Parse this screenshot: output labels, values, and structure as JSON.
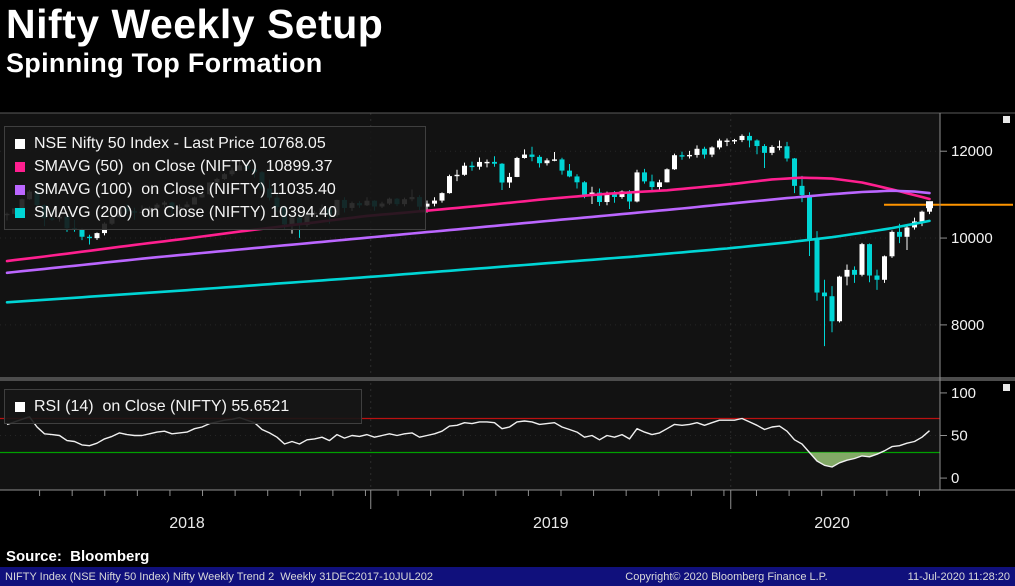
{
  "header": {
    "title": "Nifty Weekly Setup",
    "subtitle": "Spinning Top Formation"
  },
  "main_panel": {
    "legend": [
      {
        "label": "NSE Nifty 50 Index - Last Price 10768.05",
        "color": "#ffffff"
      },
      {
        "label": "SMAVG (50)  on Close (NIFTY)  10899.37",
        "color": "#ff1f8f"
      },
      {
        "label": "SMAVG (100)  on Close (NIFTY) 11035.40",
        "color": "#bb66ff"
      },
      {
        "label": "SMAVG (200)  on Close (NIFTY) 10394.40",
        "color": "#00d5d5"
      }
    ]
  },
  "rsi_panel": {
    "legend": "RSI (14)  on Close (NIFTY) 55.6521",
    "swatch_color": "#ffffff"
  },
  "footer": {
    "source": "Source:  Bloomberg",
    "status_left": "NIFTY Index (NSE Nifty 50 Index) Nifty Weekly Trend 2  Weekly 31DEC2017-10JUL202",
    "status_center": "Copyright© 2020 Bloomberg Finance L.P.",
    "status_right": "11-Jul-2020 11:28:20"
  },
  "chart_data": [
    {
      "type": "candlestick",
      "name": "NSE Nifty 50 Index - Last Price",
      "last_price": 10768.05,
      "x_unit": "week",
      "x_range_label": "31DEC2017-10JUL2020",
      "ylim": [
        6800,
        12880
      ],
      "y_ticks": [
        12000,
        10000,
        8000
      ],
      "up_color": "#ffffff",
      "down_color": "#00d5d5",
      "last_price_color": "#ff9500",
      "years": [
        {
          "label": "2018",
          "from": 0,
          "to": 48
        },
        {
          "label": "2019",
          "from": 49,
          "to": 96
        },
        {
          "label": "2020",
          "from": 97,
          "to": 123
        }
      ],
      "candles_ohlc": [
        [
          10531,
          10585,
          10404,
          10558
        ],
        [
          10558,
          10690,
          10548,
          10681
        ],
        [
          10681,
          10907,
          10675,
          10895
        ],
        [
          10895,
          11110,
          10883,
          11070
        ],
        [
          11070,
          11093,
          10736,
          10760
        ],
        [
          10760,
          10777,
          10276,
          10455
        ],
        [
          10455,
          10639,
          10400,
          10452
        ],
        [
          10452,
          10590,
          10378,
          10491
        ],
        [
          10491,
          10525,
          10141,
          10227
        ],
        [
          10227,
          10421,
          10146,
          10195
        ],
        [
          10195,
          10227,
          9952,
          10030
        ],
        [
          10030,
          10075,
          9852,
          9998
        ],
        [
          9998,
          10129,
          9958,
          10114
        ],
        [
          10114,
          10363,
          10062,
          10331
        ],
        [
          10331,
          10526,
          10302,
          10481
        ],
        [
          10481,
          10719,
          10470,
          10692
        ],
        [
          10692,
          10785,
          10557,
          10618
        ],
        [
          10618,
          10699,
          10418,
          10596
        ],
        [
          10596,
          10753,
          10527,
          10606
        ],
        [
          10606,
          10727,
          10506,
          10696
        ],
        [
          10696,
          10803,
          10644,
          10768
        ],
        [
          10768,
          10856,
          10701,
          10818
        ],
        [
          10818,
          10837,
          10550,
          10690
        ],
        [
          10690,
          10776,
          10614,
          10714
        ],
        [
          10714,
          10838,
          10678,
          10773
        ],
        [
          10773,
          10957,
          10769,
          10936
        ],
        [
          10936,
          11078,
          10926,
          11010
        ],
        [
          11010,
          11283,
          10999,
          11278
        ],
        [
          11278,
          11390,
          11234,
          11360
        ],
        [
          11360,
          11495,
          11340,
          11470
        ],
        [
          11470,
          11620,
          11426,
          11557
        ],
        [
          11557,
          11760,
          11553,
          11676
        ],
        [
          11676,
          11753,
          11567,
          11589
        ],
        [
          11589,
          11751,
          11393,
          11515
        ],
        [
          11515,
          11542,
          11087,
          11143
        ],
        [
          11143,
          11346,
          10866,
          10930
        ],
        [
          10930,
          11035,
          10603,
          10714
        ],
        [
          10714,
          10755,
          10199,
          10316
        ],
        [
          10316,
          10540,
          10102,
          10472
        ],
        [
          10472,
          10502,
          10004,
          10303
        ],
        [
          10303,
          10608,
          10261,
          10553
        ],
        [
          10553,
          10628,
          10477,
          10585
        ],
        [
          10585,
          10775,
          10564,
          10682
        ],
        [
          10682,
          10695,
          10333,
          10527
        ],
        [
          10527,
          10883,
          10488,
          10877
        ],
        [
          10877,
          10941,
          10588,
          10694
        ],
        [
          10694,
          10839,
          10625,
          10805
        ],
        [
          10805,
          10850,
          10694,
          10754
        ],
        [
          10754,
          10940,
          10738,
          10860
        ],
        [
          10860,
          10870,
          10628,
          10727
        ],
        [
          10727,
          10837,
          10692,
          10794
        ],
        [
          10794,
          10931,
          10761,
          10906
        ],
        [
          10906,
          10923,
          10735,
          10781
        ],
        [
          10781,
          10932,
          10730,
          10894
        ],
        [
          10894,
          11118,
          10848,
          10944
        ],
        [
          10944,
          10989,
          10620,
          10724
        ],
        [
          10724,
          10865,
          10585,
          10792
        ],
        [
          10792,
          10939,
          10729,
          10863
        ],
        [
          10863,
          11053,
          10817,
          11035
        ],
        [
          11035,
          11462,
          11022,
          11427
        ],
        [
          11427,
          11572,
          11311,
          11457
        ],
        [
          11457,
          11738,
          11434,
          11666
        ],
        [
          11666,
          11761,
          11549,
          11643
        ],
        [
          11643,
          11856,
          11576,
          11753
        ],
        [
          11753,
          11809,
          11627,
          11754
        ],
        [
          11754,
          11883,
          11641,
          11712
        ],
        [
          11712,
          11726,
          11108,
          11279
        ],
        [
          11279,
          11500,
          11157,
          11407
        ],
        [
          11407,
          11870,
          11402,
          11844
        ],
        [
          11844,
          12041,
          11830,
          11923
        ],
        [
          11923,
          12103,
          11769,
          11870
        ],
        [
          11870,
          11911,
          11625,
          11724
        ],
        [
          11724,
          11834,
          11670,
          11789
        ],
        [
          11789,
          11982,
          11770,
          11811
        ],
        [
          11811,
          11850,
          11461,
          11553
        ],
        [
          11553,
          11706,
          11399,
          11419
        ],
        [
          11419,
          11468,
          11141,
          11284
        ],
        [
          11284,
          11311,
          10918,
          10997
        ],
        [
          10997,
          11181,
          10783,
          11048
        ],
        [
          11048,
          11141,
          10741,
          10830
        ],
        [
          10830,
          11070,
          10756,
          11023
        ],
        [
          11023,
          11084,
          10814,
          10946
        ],
        [
          10946,
          11098,
          10905,
          11076
        ],
        [
          11076,
          11103,
          10670,
          10842
        ],
        [
          10842,
          11573,
          10823,
          11512
        ],
        [
          11512,
          11593,
          11254,
          11305
        ],
        [
          11305,
          11460,
          11090,
          11175
        ],
        [
          11175,
          11343,
          11073,
          11284
        ],
        [
          11284,
          11606,
          11280,
          11584
        ],
        [
          11584,
          11945,
          11570,
          11908
        ],
        [
          11908,
          11990,
          11803,
          11895
        ],
        [
          11895,
          12009,
          11832,
          11914
        ],
        [
          11914,
          12133,
          11852,
          12056
        ],
        [
          12056,
          12104,
          11833,
          11922
        ],
        [
          11922,
          12112,
          11863,
          12087
        ],
        [
          12087,
          12287,
          12042,
          12245
        ],
        [
          12245,
          12294,
          12118,
          12246
        ],
        [
          12246,
          12283,
          12165,
          12257
        ],
        [
          12257,
          12389,
          12210,
          12352
        ],
        [
          12352,
          12431,
          12087,
          12248
        ],
        [
          12248,
          12272,
          11930,
          12119
        ],
        [
          12119,
          12163,
          11614,
          11962
        ],
        [
          11962,
          12138,
          11909,
          12098
        ],
        [
          12098,
          12246,
          12021,
          12113
        ],
        [
          12113,
          12215,
          11763,
          11833
        ],
        [
          11833,
          11844,
          11036,
          11202
        ],
        [
          11202,
          11433,
          10827,
          10989
        ],
        [
          10989,
          11057,
          9588,
          9955
        ],
        [
          9955,
          10159,
          8555,
          8745
        ],
        [
          8745,
          9039,
          7511,
          8660
        ],
        [
          8660,
          8893,
          7832,
          8084
        ],
        [
          8084,
          9131,
          8056,
          9112
        ],
        [
          9112,
          9390,
          8909,
          9267
        ],
        [
          9267,
          9347,
          8967,
          9154
        ],
        [
          9154,
          9889,
          9118,
          9860
        ],
        [
          9860,
          9875,
          8981,
          9137
        ],
        [
          9137,
          9273,
          8807,
          9039
        ],
        [
          9039,
          9598,
          8968,
          9580
        ],
        [
          9580,
          10176,
          9544,
          10142
        ],
        [
          10142,
          10329,
          9883,
          10029
        ],
        [
          10029,
          10311,
          9726,
          10244
        ],
        [
          10244,
          10471,
          10194,
          10383
        ],
        [
          10383,
          10632,
          10274,
          10607
        ],
        [
          10607,
          10813,
          10550,
          10768
        ]
      ],
      "overlays": [
        {
          "name": "SMAVG (50) on Close (NIFTY)",
          "color": "#ff1f8f",
          "value": 10899.37,
          "anchors": [
            [
              0,
              9470
            ],
            [
              8,
              9640
            ],
            [
              16,
              9820
            ],
            [
              24,
              9990
            ],
            [
              32,
              10170
            ],
            [
              40,
              10340
            ],
            [
              48,
              10510
            ],
            [
              56,
              10630
            ],
            [
              64,
              10760
            ],
            [
              72,
              10900
            ],
            [
              80,
              11020
            ],
            [
              88,
              11100
            ],
            [
              96,
              11230
            ],
            [
              102,
              11350
            ],
            [
              106,
              11390
            ],
            [
              110,
              11370
            ],
            [
              114,
              11280
            ],
            [
              118,
              11120
            ],
            [
              121,
              10990
            ],
            [
              123,
              10899.37
            ]
          ]
        },
        {
          "name": "SMAVG (100) on Close (NIFTY)",
          "color": "#bb66ff",
          "value": 11035.4,
          "anchors": [
            [
              0,
              9200
            ],
            [
              10,
              9380
            ],
            [
              20,
              9560
            ],
            [
              30,
              9720
            ],
            [
              40,
              9880
            ],
            [
              50,
              10040
            ],
            [
              60,
              10200
            ],
            [
              70,
              10360
            ],
            [
              80,
              10520
            ],
            [
              90,
              10680
            ],
            [
              98,
              10820
            ],
            [
              104,
              10920
            ],
            [
              110,
              11010
            ],
            [
              114,
              11060
            ],
            [
              118,
              11090
            ],
            [
              121,
              11070
            ],
            [
              123,
              11035.4
            ]
          ]
        },
        {
          "name": "SMAVG (200) on Close (NIFTY)",
          "color": "#00d5d5",
          "value": 10394.4,
          "anchors": [
            [
              0,
              8520
            ],
            [
              12,
              8660
            ],
            [
              24,
              8800
            ],
            [
              36,
              8950
            ],
            [
              48,
              9100
            ],
            [
              60,
              9260
            ],
            [
              72,
              9420
            ],
            [
              84,
              9580
            ],
            [
              96,
              9760
            ],
            [
              104,
              9900
            ],
            [
              110,
              10020
            ],
            [
              114,
              10120
            ],
            [
              118,
              10230
            ],
            [
              123,
              10394.4
            ]
          ]
        }
      ]
    },
    {
      "type": "line",
      "name": "RSI (14) on Close (NIFTY)",
      "last_value": 55.6521,
      "ylim": [
        -14,
        114
      ],
      "y_ticks": [
        100,
        50,
        0
      ],
      "line_color": "#f0f0f0",
      "overbought": {
        "level": 70,
        "color": "#bb1111"
      },
      "oversold": {
        "level": 30,
        "color": "#00a000",
        "fill": "#8fba70"
      },
      "values": [
        63,
        66,
        69,
        72,
        60,
        52,
        51,
        50,
        44,
        43,
        39,
        38,
        41,
        46,
        49,
        53,
        51,
        50,
        50,
        52,
        54,
        55,
        52,
        53,
        54,
        58,
        60,
        64,
        66,
        68,
        69,
        71,
        68,
        65,
        57,
        53,
        48,
        40,
        43,
        40,
        45,
        46,
        48,
        44,
        51,
        47,
        50,
        49,
        51,
        48,
        50,
        52,
        50,
        52,
        53,
        48,
        50,
        52,
        55,
        61,
        62,
        65,
        64,
        66,
        66,
        65,
        58,
        60,
        66,
        67,
        66,
        63,
        64,
        65,
        60,
        57,
        54,
        48,
        50,
        45,
        50,
        48,
        51,
        46,
        58,
        54,
        51,
        53,
        58,
        63,
        62,
        63,
        65,
        62,
        65,
        68,
        68,
        68,
        70,
        66,
        62,
        57,
        60,
        61,
        55,
        45,
        40,
        30,
        20,
        15,
        13,
        18,
        21,
        23,
        26,
        25,
        28,
        32,
        37,
        38,
        41,
        43,
        48,
        55.65
      ]
    }
  ]
}
